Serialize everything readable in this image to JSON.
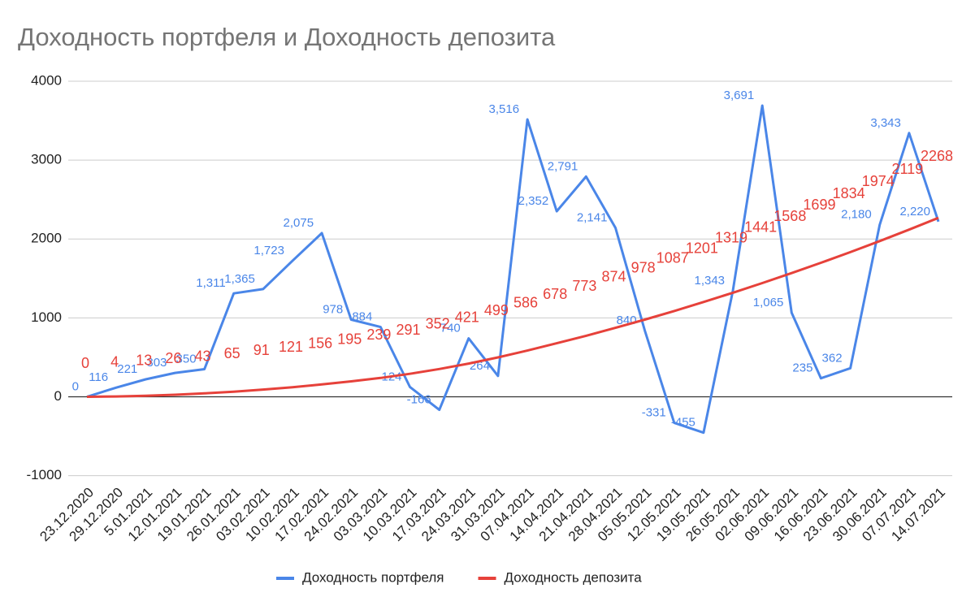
{
  "chart_data": {
    "type": "line",
    "title": "Доходность портфеля и Доходность депозита",
    "categories": [
      "23.12.2020",
      "29.12.2020",
      "5.01.2021",
      "12.01.2021",
      "19.01.2021",
      "26.01.2021",
      "03.02.2021",
      "10.02.2021",
      "17.02.2021",
      "24.02.2021",
      "03.03.2021",
      "10.03.2021",
      "17.03.2021",
      "24.03.2021",
      "31.03.2021",
      "07.04.2021",
      "14.04.2021",
      "21.04.2021",
      "28.04.2021",
      "05.05.2021",
      "12.05.2021",
      "19.05.2021",
      "26.05.2021",
      "02.06.2021",
      "09.06.2021",
      "16.06.2021",
      "23.06.2021",
      "30.06.2021",
      "07.07.2021",
      "14.07.2021"
    ],
    "series": [
      {
        "name": "Доходность портфеля",
        "color": "#4a86e8",
        "values": [
          0,
          116,
          221,
          303,
          350,
          1311,
          1365,
          1723,
          2075,
          978,
          884,
          124,
          -166,
          740,
          264,
          3516,
          2352,
          2791,
          2141,
          840,
          -331,
          -455,
          1343,
          3691,
          1065,
          235,
          362,
          2180,
          3343,
          2220
        ],
        "value_labels": [
          "0",
          "116",
          "221",
          "303",
          "350",
          "1,311",
          "1,365",
          "1,723",
          "2,075",
          "978",
          "884",
          "124",
          "-166",
          "740",
          "264",
          "3,516",
          "2,352",
          "2,791",
          "2,141",
          "840",
          "-331",
          "-455",
          "1,343",
          "3,691",
          "1,065",
          "235",
          "362",
          "2,180",
          "3,343",
          "2,220"
        ]
      },
      {
        "name": "Доходность депозита",
        "color": "#e6413a",
        "values": [
          0,
          4,
          13,
          26,
          43,
          65,
          91,
          121,
          156,
          195,
          239,
          291,
          352,
          421,
          499,
          586,
          678,
          773,
          874,
          978,
          1087,
          1201,
          1319,
          1441,
          1568,
          1699,
          1834,
          1974,
          2119,
          2268
        ]
      }
    ],
    "ylim": [
      -1000,
      4000
    ],
    "yticks": [
      -1000,
      0,
      1000,
      2000,
      3000,
      4000
    ],
    "grid": true,
    "legend": "bottom"
  }
}
